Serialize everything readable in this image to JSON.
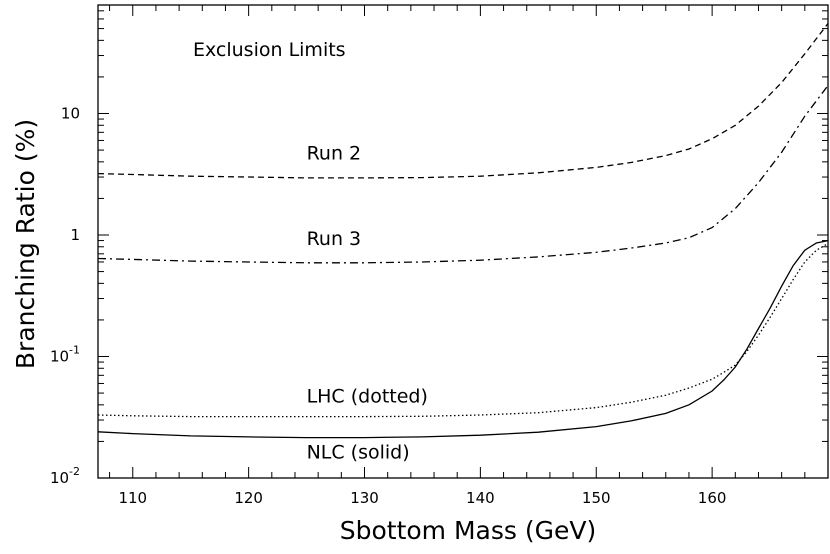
{
  "chart_data": {
    "type": "line",
    "title": "Exclusion Limits",
    "xlabel": "Sbottom Mass (GeV)",
    "ylabel": "Branching Ratio (%)",
    "xlim": [
      107,
      170
    ],
    "ylim": [
      0.01,
      70
    ],
    "y_scale": "log",
    "grid": false,
    "x_ticks": [
      "110",
      "120",
      "130",
      "140",
      "150",
      "160"
    ],
    "y_ticks": [
      {
        "value": 0.01,
        "base": "10",
        "exp": "-2"
      },
      {
        "value": 0.1,
        "base": "10",
        "exp": "-1"
      },
      {
        "value": 1,
        "base": "1",
        "exp": ""
      },
      {
        "value": 10,
        "base": "10",
        "exp": ""
      }
    ],
    "annotations": [
      {
        "text": "Run 2",
        "x": 125,
        "y": 4.2
      },
      {
        "text": "Run 3",
        "x": 125,
        "y": 0.83
      },
      {
        "text": "LHC (dotted)",
        "x": 125,
        "y": 0.042
      },
      {
        "text": "NLC (solid)",
        "x": 125,
        "y": 0.0145
      }
    ],
    "series": [
      {
        "label": "Run 2",
        "style": "dashed",
        "x": [
          107,
          110,
          115,
          120,
          125,
          130,
          135,
          140,
          145,
          150,
          153,
          156,
          158,
          160,
          162,
          164,
          166,
          168,
          170
        ],
        "y": [
          3.2,
          3.15,
          3.05,
          3.0,
          2.95,
          2.95,
          2.97,
          3.05,
          3.25,
          3.6,
          3.95,
          4.5,
          5.1,
          6.2,
          8.0,
          11.5,
          18,
          31,
          55
        ]
      },
      {
        "label": "Run 3",
        "style": "dash-dot",
        "x": [
          107,
          110,
          115,
          120,
          125,
          130,
          135,
          140,
          145,
          150,
          153,
          156,
          158,
          160,
          162,
          164,
          166,
          168,
          170
        ],
        "y": [
          0.64,
          0.63,
          0.61,
          0.6,
          0.59,
          0.59,
          0.6,
          0.62,
          0.66,
          0.72,
          0.78,
          0.86,
          0.95,
          1.15,
          1.65,
          2.7,
          4.8,
          9.5,
          17
        ]
      },
      {
        "label": "LHC (dotted)",
        "style": "dotted",
        "x": [
          107,
          110,
          115,
          120,
          125,
          130,
          135,
          140,
          145,
          150,
          153,
          156,
          158,
          160,
          161,
          162,
          163,
          164,
          165,
          166,
          167,
          168,
          169,
          170
        ],
        "y": [
          0.033,
          0.0325,
          0.032,
          0.032,
          0.032,
          0.032,
          0.0322,
          0.033,
          0.0345,
          0.038,
          0.042,
          0.048,
          0.055,
          0.065,
          0.074,
          0.085,
          0.11,
          0.15,
          0.21,
          0.3,
          0.43,
          0.6,
          0.75,
          0.85
        ]
      },
      {
        "label": "NLC (solid)",
        "style": "solid",
        "x": [
          107,
          110,
          115,
          120,
          125,
          130,
          135,
          140,
          145,
          150,
          153,
          156,
          158,
          160,
          161,
          162,
          163,
          164,
          165,
          166,
          167,
          168,
          169,
          170
        ],
        "y": [
          0.024,
          0.0232,
          0.0222,
          0.0218,
          0.0215,
          0.0215,
          0.0218,
          0.0225,
          0.0238,
          0.0265,
          0.0295,
          0.034,
          0.04,
          0.052,
          0.064,
          0.082,
          0.115,
          0.17,
          0.25,
          0.38,
          0.56,
          0.75,
          0.86,
          0.9
        ]
      }
    ]
  }
}
